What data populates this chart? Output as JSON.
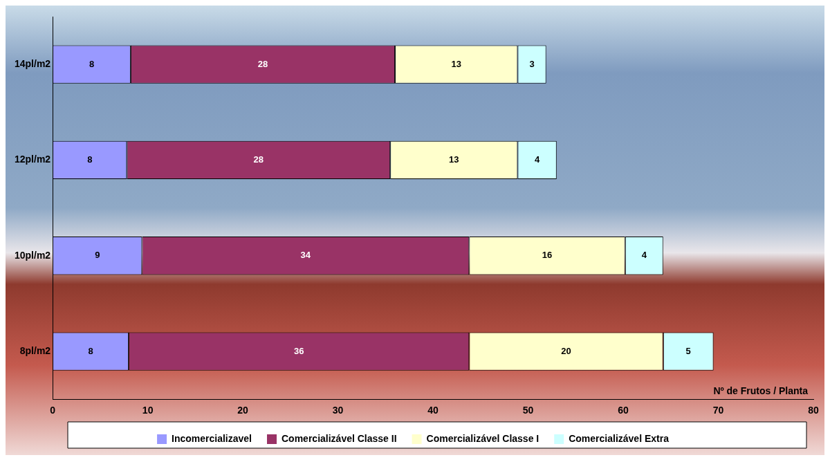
{
  "chart_data": {
    "type": "bar",
    "orientation": "horizontal",
    "stacked": true,
    "xlabel": "Nº de Frutos / Planta",
    "categories": [
      "14pl/m2",
      "12pl/m2",
      "10pl/m2",
      "8pl/m2"
    ],
    "series": [
      {
        "name": "Incomercializavel",
        "color": "#9999ff",
        "values": [
          8.2,
          7.8,
          9.4,
          8.0
        ],
        "value_labels": [
          "8",
          "8",
          "9",
          "8"
        ]
      },
      {
        "name": "Comercializável Classe II",
        "color": "#993366",
        "values": [
          27.8,
          27.7,
          34.4,
          35.8
        ],
        "value_labels": [
          "28",
          "28",
          "34",
          "36"
        ]
      },
      {
        "name": "Comercializável Classe I",
        "color": "#ffffcc",
        "values": [
          12.9,
          13.4,
          16.4,
          20.4
        ],
        "value_labels": [
          "13",
          "13",
          "16",
          "20"
        ]
      },
      {
        "name": "Comercializável Extra",
        "color": "#ccffff",
        "values": [
          3.0,
          4.1,
          4.0,
          5.3
        ],
        "value_labels": [
          "3",
          "4",
          "4",
          "5"
        ]
      }
    ],
    "xlim": [
      0,
      80
    ],
    "xticks": [
      0,
      10,
      20,
      30,
      40,
      50,
      60,
      70,
      80
    ],
    "grid": false,
    "legend": "bottom"
  }
}
